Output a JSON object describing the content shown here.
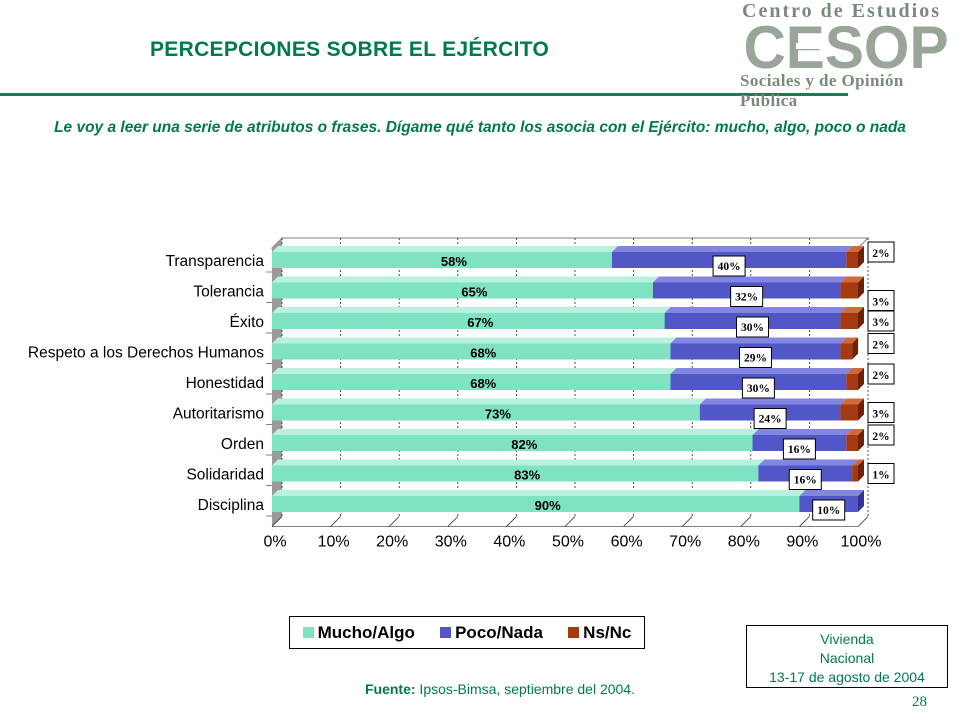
{
  "header": {
    "title": "PERCEPCIONES SOBRE EL EJÉRCITO",
    "question": "Le voy a leer una serie de atributos o frases. Dígame qué tanto los asocia con el Ejército: mucho, algo, poco o nada"
  },
  "logo": {
    "top_text": "Centro de Estudios",
    "mark_text": "CESOP",
    "bottom_text": "Sociales y de Opinión Pública"
  },
  "colors": {
    "accent": "#007a4d",
    "mucho": "#7fe3c3",
    "poco": "#5257c8",
    "nsnc": "#a33a10"
  },
  "chart_data": {
    "type": "bar",
    "orientation": "horizontal",
    "stacked": true,
    "categories": [
      "Transparencia",
      "Tolerancia",
      "Éxito",
      "Respeto a los Derechos Humanos",
      "Honestidad",
      "Autoritarismo",
      "Orden",
      "Solidaridad",
      "Disciplina"
    ],
    "series": [
      {
        "name": "Mucho/Algo",
        "values": [
          58,
          65,
          67,
          68,
          68,
          73,
          82,
          83,
          90
        ],
        "labels": [
          "58%",
          "65%",
          "67%",
          "68%",
          "68%",
          "73%",
          "82%",
          "83%",
          "90%"
        ]
      },
      {
        "name": "Poco/Nada",
        "values": [
          40,
          32,
          30,
          29,
          30,
          24,
          16,
          16,
          10
        ],
        "labels": [
          "40%",
          "32%",
          "30%",
          "29%",
          "30%",
          "24%",
          "16%",
          "16%",
          "10%"
        ]
      },
      {
        "name": "Ns/Nc",
        "values": [
          2,
          3,
          3,
          2,
          2,
          3,
          2,
          1,
          0
        ],
        "labels": [
          "2%",
          "3%",
          "3%",
          "2%",
          "2%",
          "3%",
          "2%",
          "1%",
          ""
        ]
      }
    ],
    "xlim": [
      0,
      100
    ],
    "xticks": [
      "0%",
      "10%",
      "20%",
      "30%",
      "40%",
      "50%",
      "60%",
      "70%",
      "80%",
      "90%",
      "100%"
    ],
    "grid": true,
    "legend_position": "bottom"
  },
  "legend": {
    "items": [
      "Mucho/Algo",
      "Poco/Nada",
      "Ns/Nc"
    ]
  },
  "footer": {
    "source_label": "Fuente:",
    "source_text": " Ipsos-Bimsa, septiembre del 2004.",
    "datebox": [
      "Vivienda",
      "Nacional",
      "13-17 de agosto de 2004"
    ],
    "page_number": "28"
  }
}
